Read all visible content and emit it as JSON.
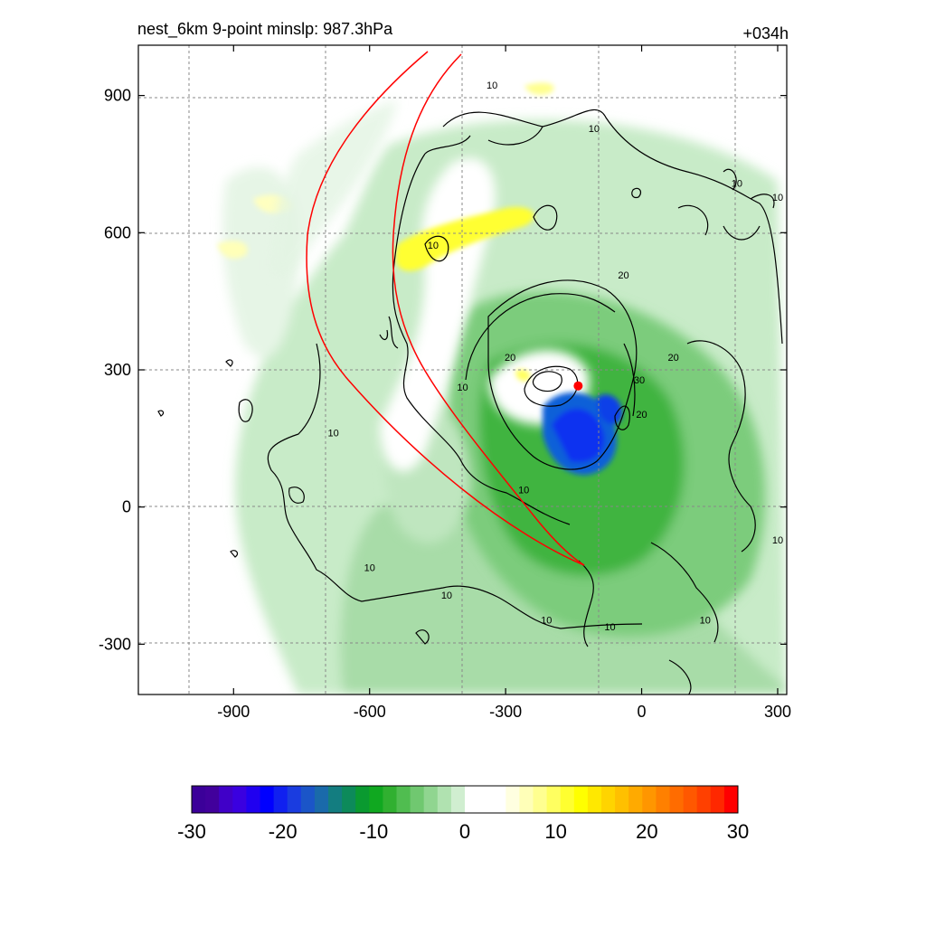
{
  "header": {
    "title_left": "nest_6km  9-point minslp: 987.3hPa",
    "title_right": "+034h"
  },
  "chart_data": {
    "type": "heatmap",
    "title": "nest_6km  9-point minslp: 987.3hPa",
    "forecast_hour": "+034h",
    "xlim": [
      -1110,
      320
    ],
    "ylim": [
      -410,
      1010
    ],
    "xticks": [
      -900,
      -600,
      -300,
      0,
      300
    ],
    "yticks": [
      -300,
      0,
      300,
      600,
      900
    ],
    "grid": true,
    "colorbar": {
      "min": -30,
      "max": 30,
      "ticks": [
        -30,
        -20,
        -10,
        0,
        10,
        20,
        30
      ],
      "tick_labels": [
        "-30",
        "-20",
        "-10",
        "0",
        "10",
        "20",
        "30"
      ],
      "colors": [
        "#3b0099",
        "#41009c",
        "#4000c8",
        "#3a00e0",
        "#2000f0",
        "#0000ff",
        "#1020f0",
        "#1a3ce0",
        "#1b55c8",
        "#1a6aaa",
        "#137d80",
        "#0d8a5a",
        "#0a9a30",
        "#10a820",
        "#30b030",
        "#50bd50",
        "#70c870",
        "#90d590",
        "#b0e2b0",
        "#d0eed0",
        "#ffffff",
        "#ffffff",
        "#ffffff",
        "#ffffe0",
        "#ffffb8",
        "#ffff90",
        "#ffff60",
        "#ffff30",
        "#ffff00",
        "#ffe800",
        "#ffd400",
        "#ffc000",
        "#ffaa00",
        "#ff9600",
        "#ff8000",
        "#ff6c00",
        "#ff5800",
        "#ff4000",
        "#ff2800",
        "#ff0000"
      ]
    },
    "storm_center": {
      "x": -140,
      "y": 265
    },
    "contour_labels": [
      {
        "text": "10",
        "x": -330,
        "y": 915
      },
      {
        "text": "10",
        "x": -105,
        "y": 820
      },
      {
        "text": "10",
        "x": 210,
        "y": 700
      },
      {
        "text": "10",
        "x": 300,
        "y": 670
      },
      {
        "text": "10",
        "x": -460,
        "y": 565
      },
      {
        "text": "20",
        "x": -40,
        "y": 500
      },
      {
        "text": "20",
        "x": -290,
        "y": 320
      },
      {
        "text": "20",
        "x": 70,
        "y": 320
      },
      {
        "text": "30",
        "x": -5,
        "y": 270
      },
      {
        "text": "10",
        "x": -395,
        "y": 255
      },
      {
        "text": "10",
        "x": -680,
        "y": 155
      },
      {
        "text": "20",
        "x": 0,
        "y": 195
      },
      {
        "text": "10",
        "x": -260,
        "y": 30
      },
      {
        "text": "10",
        "x": 300,
        "y": -80
      },
      {
        "text": "10",
        "x": -600,
        "y": -140
      },
      {
        "text": "10",
        "x": -430,
        "y": -200
      },
      {
        "text": "10",
        "x": -210,
        "y": -255
      },
      {
        "text": "10",
        "x": -70,
        "y": -270
      },
      {
        "text": "10",
        "x": 140,
        "y": -255
      }
    ]
  }
}
